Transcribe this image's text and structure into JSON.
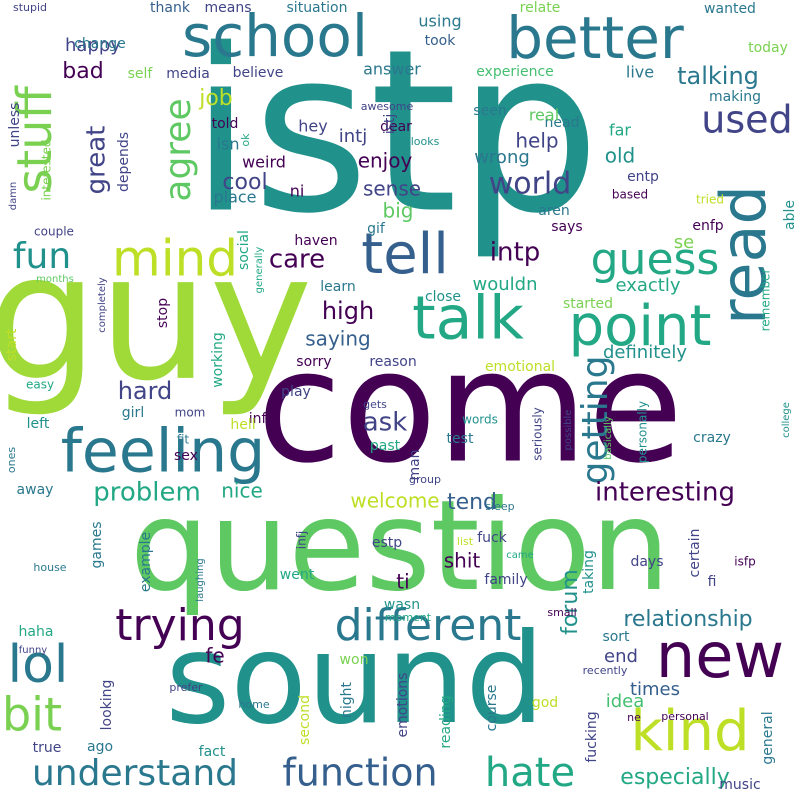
{
  "palette": {
    "purple": "#440154",
    "indigo": "#414487",
    "blue": "#355f8d",
    "teal": "#2a788e",
    "seagreen": "#21918c",
    "green": "#22a884",
    "lightgreen": "#44bf70",
    "lime": "#7ad151",
    "yellowgreen": "#bddf26",
    "yellow": "#fde725"
  },
  "words": [
    {
      "text": "istp",
      "color": "#21918c"
    },
    {
      "text": "guy",
      "color": "#a0da39"
    },
    {
      "text": "come",
      "color": "#440154"
    },
    {
      "text": "question",
      "color": "#5ec962"
    },
    {
      "text": "sound",
      "color": "#21918c"
    },
    {
      "text": "school",
      "color": "#2a788e"
    },
    {
      "text": "better",
      "color": "#2a788e"
    },
    {
      "text": "stuff",
      "color": "#7ad151"
    },
    {
      "text": "read",
      "color": "#2a788e"
    },
    {
      "text": "mind",
      "color": "#bddf26"
    },
    {
      "text": "tell",
      "color": "#355f8d"
    },
    {
      "text": "talk",
      "color": "#22a884"
    },
    {
      "text": "point",
      "color": "#22a884"
    },
    {
      "text": "feeling",
      "color": "#2a788e"
    },
    {
      "text": "new",
      "color": "#440154"
    },
    {
      "text": "kind",
      "color": "#bddf26"
    },
    {
      "text": "different",
      "color": "#2a788e"
    },
    {
      "text": "trying",
      "color": "#440154"
    },
    {
      "text": "lol",
      "color": "#2a788e"
    },
    {
      "text": "bit",
      "color": "#7ad151"
    },
    {
      "text": "guess",
      "color": "#22a884"
    },
    {
      "text": "agree",
      "color": "#5ec962"
    },
    {
      "text": "getting",
      "color": "#2a788e"
    },
    {
      "text": "understand",
      "color": "#2a788e"
    },
    {
      "text": "function",
      "color": "#355f8d"
    },
    {
      "text": "hate",
      "color": "#22a884"
    },
    {
      "text": "used",
      "color": "#414487"
    },
    {
      "text": "fun",
      "color": "#21918c"
    },
    {
      "text": "world",
      "color": "#414487"
    },
    {
      "text": "interesting",
      "color": "#440154"
    },
    {
      "text": "problem",
      "color": "#22a884"
    },
    {
      "text": "relationship",
      "color": "#2a788e"
    },
    {
      "text": "talking",
      "color": "#2a788e"
    },
    {
      "text": "ask",
      "color": "#414487"
    },
    {
      "text": "intp",
      "color": "#440154"
    },
    {
      "text": "hard",
      "color": "#414487"
    },
    {
      "text": "great",
      "color": "#414487"
    },
    {
      "text": "care",
      "color": "#440154"
    },
    {
      "text": "high",
      "color": "#440154"
    },
    {
      "text": "forum",
      "color": "#21918c"
    },
    {
      "text": "especially",
      "color": "#22a884"
    },
    {
      "text": "cool",
      "color": "#414487"
    },
    {
      "text": "enjoy",
      "color": "#440154"
    },
    {
      "text": "sense",
      "color": "#414487"
    },
    {
      "text": "help",
      "color": "#414487"
    },
    {
      "text": "wrong",
      "color": "#2a788e"
    },
    {
      "text": "old",
      "color": "#21918c"
    },
    {
      "text": "saying",
      "color": "#355f8d"
    },
    {
      "text": "definitely",
      "color": "#21918c"
    },
    {
      "text": "exactly",
      "color": "#22a884"
    },
    {
      "text": "welcome",
      "color": "#bddf26"
    },
    {
      "text": "tend",
      "color": "#355f8d"
    },
    {
      "text": "shit",
      "color": "#440154"
    },
    {
      "text": "nice",
      "color": "#22a884"
    },
    {
      "text": "job",
      "color": "#bddf26"
    },
    {
      "text": "bad",
      "color": "#440154"
    },
    {
      "text": "happy",
      "color": "#414487"
    },
    {
      "text": "intj",
      "color": "#414487"
    },
    {
      "text": "big",
      "color": "#5ec962"
    },
    {
      "text": "wouldn",
      "color": "#22a884"
    },
    {
      "text": "times",
      "color": "#355f8d"
    },
    {
      "text": "idea",
      "color": "#44bf70"
    },
    {
      "text": "end",
      "color": "#414487"
    },
    {
      "text": "se",
      "color": "#7ad151"
    },
    {
      "text": "ti",
      "color": "#440154"
    },
    {
      "text": "fe",
      "color": "#440154"
    },
    {
      "text": "using",
      "color": "#2a788e"
    },
    {
      "text": "answer",
      "color": "#2a788e"
    },
    {
      "text": "live",
      "color": "#2a788e"
    },
    {
      "text": "experience",
      "color": "#44bf70"
    },
    {
      "text": "thank",
      "color": "#355f8d"
    },
    {
      "text": "means",
      "color": "#414487"
    },
    {
      "text": "situation",
      "color": "#2a788e"
    },
    {
      "text": "relate",
      "color": "#7ad151"
    },
    {
      "text": "wanted",
      "color": "#2a788e"
    },
    {
      "text": "today",
      "color": "#7ad151"
    },
    {
      "text": "change",
      "color": "#2a788e"
    },
    {
      "text": "self",
      "color": "#7ad151"
    },
    {
      "text": "media",
      "color": "#414487"
    },
    {
      "text": "believe",
      "color": "#414487"
    },
    {
      "text": "took",
      "color": "#355f8d"
    },
    {
      "text": "awesome",
      "color": "#414487"
    },
    {
      "text": "head",
      "color": "#2a788e"
    },
    {
      "text": "making",
      "color": "#2a788e"
    },
    {
      "text": "dear",
      "color": "#440154"
    },
    {
      "text": "real",
      "color": "#5ec962"
    },
    {
      "text": "seen",
      "color": "#2a788e"
    },
    {
      "text": "told",
      "color": "#440154"
    },
    {
      "text": "isn",
      "color": "#2a788e"
    },
    {
      "text": "hey",
      "color": "#414487"
    },
    {
      "text": "istj",
      "color": "#414487"
    },
    {
      "text": "far",
      "color": "#22a884"
    },
    {
      "text": "weird",
      "color": "#440154"
    },
    {
      "text": "entp",
      "color": "#414487"
    },
    {
      "text": "place",
      "color": "#2a788e"
    },
    {
      "text": "ni",
      "color": "#440154"
    },
    {
      "text": "aren",
      "color": "#2a788e"
    },
    {
      "text": "based",
      "color": "#440154"
    },
    {
      "text": "tried",
      "color": "#bddf26"
    },
    {
      "text": "enfp",
      "color": "#440154"
    },
    {
      "text": "able",
      "color": "#21918c"
    },
    {
      "text": "says",
      "color": "#440154"
    },
    {
      "text": "haven",
      "color": "#440154"
    },
    {
      "text": "gif",
      "color": "#2a788e"
    },
    {
      "text": "learn",
      "color": "#2a788e"
    },
    {
      "text": "close",
      "color": "#21918c"
    },
    {
      "text": "started",
      "color": "#7ad151"
    },
    {
      "text": "remember",
      "color": "#22a884"
    },
    {
      "text": "stupid",
      "color": "#414487"
    },
    {
      "text": "unless",
      "color": "#414487"
    },
    {
      "text": "interested",
      "color": "#7ad151"
    },
    {
      "text": "depends",
      "color": "#414487"
    },
    {
      "text": "damn",
      "color": "#414487"
    },
    {
      "text": "couple",
      "color": "#414487"
    },
    {
      "text": "months",
      "color": "#5ec962"
    },
    {
      "text": "social",
      "color": "#22a884"
    },
    {
      "text": "generally",
      "color": "#22a884"
    },
    {
      "text": "completely",
      "color": "#414487"
    },
    {
      "text": "start",
      "color": "#bddf26"
    },
    {
      "text": "stop",
      "color": "#440154"
    },
    {
      "text": "working",
      "color": "#22a884"
    },
    {
      "text": "sorry",
      "color": "#440154"
    },
    {
      "text": "reason",
      "color": "#414487"
    },
    {
      "text": "emotional",
      "color": "#bddf26"
    },
    {
      "text": "easy",
      "color": "#22a884"
    },
    {
      "text": "play",
      "color": "#414487"
    },
    {
      "text": "left",
      "color": "#21918c"
    },
    {
      "text": "girl",
      "color": "#2a788e"
    },
    {
      "text": "mom",
      "color": "#414487"
    },
    {
      "text": "infp",
      "color": "#440154"
    },
    {
      "text": "hell",
      "color": "#bddf26"
    },
    {
      "text": "past",
      "color": "#22a884"
    },
    {
      "text": "test",
      "color": "#2a788e"
    },
    {
      "text": "man",
      "color": "#414487"
    },
    {
      "text": "words",
      "color": "#21918c"
    },
    {
      "text": "seriously",
      "color": "#414487"
    },
    {
      "text": "possible",
      "color": "#414487"
    },
    {
      "text": "basically",
      "color": "#5ec962"
    },
    {
      "text": "personally",
      "color": "#21918c"
    },
    {
      "text": "crazy",
      "color": "#2a788e"
    },
    {
      "text": "college",
      "color": "#21918c"
    },
    {
      "text": "gets",
      "color": "#414487"
    },
    {
      "text": "fit",
      "color": "#2a788e"
    },
    {
      "text": "sex",
      "color": "#440154"
    },
    {
      "text": "ones",
      "color": "#2a788e"
    },
    {
      "text": "away",
      "color": "#2a788e"
    },
    {
      "text": "group",
      "color": "#414487"
    },
    {
      "text": "sleep",
      "color": "#2a788e"
    },
    {
      "text": "games",
      "color": "#2a788e"
    },
    {
      "text": "example",
      "color": "#2a788e"
    },
    {
      "text": "infj",
      "color": "#414487"
    },
    {
      "text": "estp",
      "color": "#414487"
    },
    {
      "text": "fuck",
      "color": "#414487"
    },
    {
      "text": "list",
      "color": "#bddf26"
    },
    {
      "text": "came",
      "color": "#22a884"
    },
    {
      "text": "taking",
      "color": "#21918c"
    },
    {
      "text": "days",
      "color": "#414487"
    },
    {
      "text": "certain",
      "color": "#414487"
    },
    {
      "text": "isfp",
      "color": "#440154"
    },
    {
      "text": "fi",
      "color": "#414487"
    },
    {
      "text": "house",
      "color": "#2a788e"
    },
    {
      "text": "laughing",
      "color": "#2a788e"
    },
    {
      "text": "went",
      "color": "#22a884"
    },
    {
      "text": "family",
      "color": "#414487"
    },
    {
      "text": "wasn",
      "color": "#21918c"
    },
    {
      "text": "moment",
      "color": "#22a884"
    },
    {
      "text": "small",
      "color": "#440154"
    },
    {
      "text": "sort",
      "color": "#2a788e"
    },
    {
      "text": "haha",
      "color": "#22a884"
    },
    {
      "text": "funny",
      "color": "#414487"
    },
    {
      "text": "won",
      "color": "#7ad151"
    },
    {
      "text": "night",
      "color": "#2a788e"
    },
    {
      "text": "recently",
      "color": "#414487"
    },
    {
      "text": "prefer",
      "color": "#414487"
    },
    {
      "text": "home",
      "color": "#2a788e"
    },
    {
      "text": "looking",
      "color": "#414487"
    },
    {
      "text": "second",
      "color": "#bddf26"
    },
    {
      "text": "emotions",
      "color": "#414487"
    },
    {
      "text": "reading",
      "color": "#22a884"
    },
    {
      "text": "course",
      "color": "#2a788e"
    },
    {
      "text": "god",
      "color": "#bddf26"
    },
    {
      "text": "fucking",
      "color": "#414487"
    },
    {
      "text": "ne",
      "color": "#440154"
    },
    {
      "text": "personal",
      "color": "#440154"
    },
    {
      "text": "general",
      "color": "#2a788e"
    },
    {
      "text": "true",
      "color": "#414487"
    },
    {
      "text": "ago",
      "color": "#2a788e"
    },
    {
      "text": "fact",
      "color": "#21918c"
    },
    {
      "text": "music",
      "color": "#414487"
    },
    {
      "text": "ok",
      "color": "#22a884"
    },
    {
      "text": "looks",
      "color": "#21918c"
    }
  ]
}
